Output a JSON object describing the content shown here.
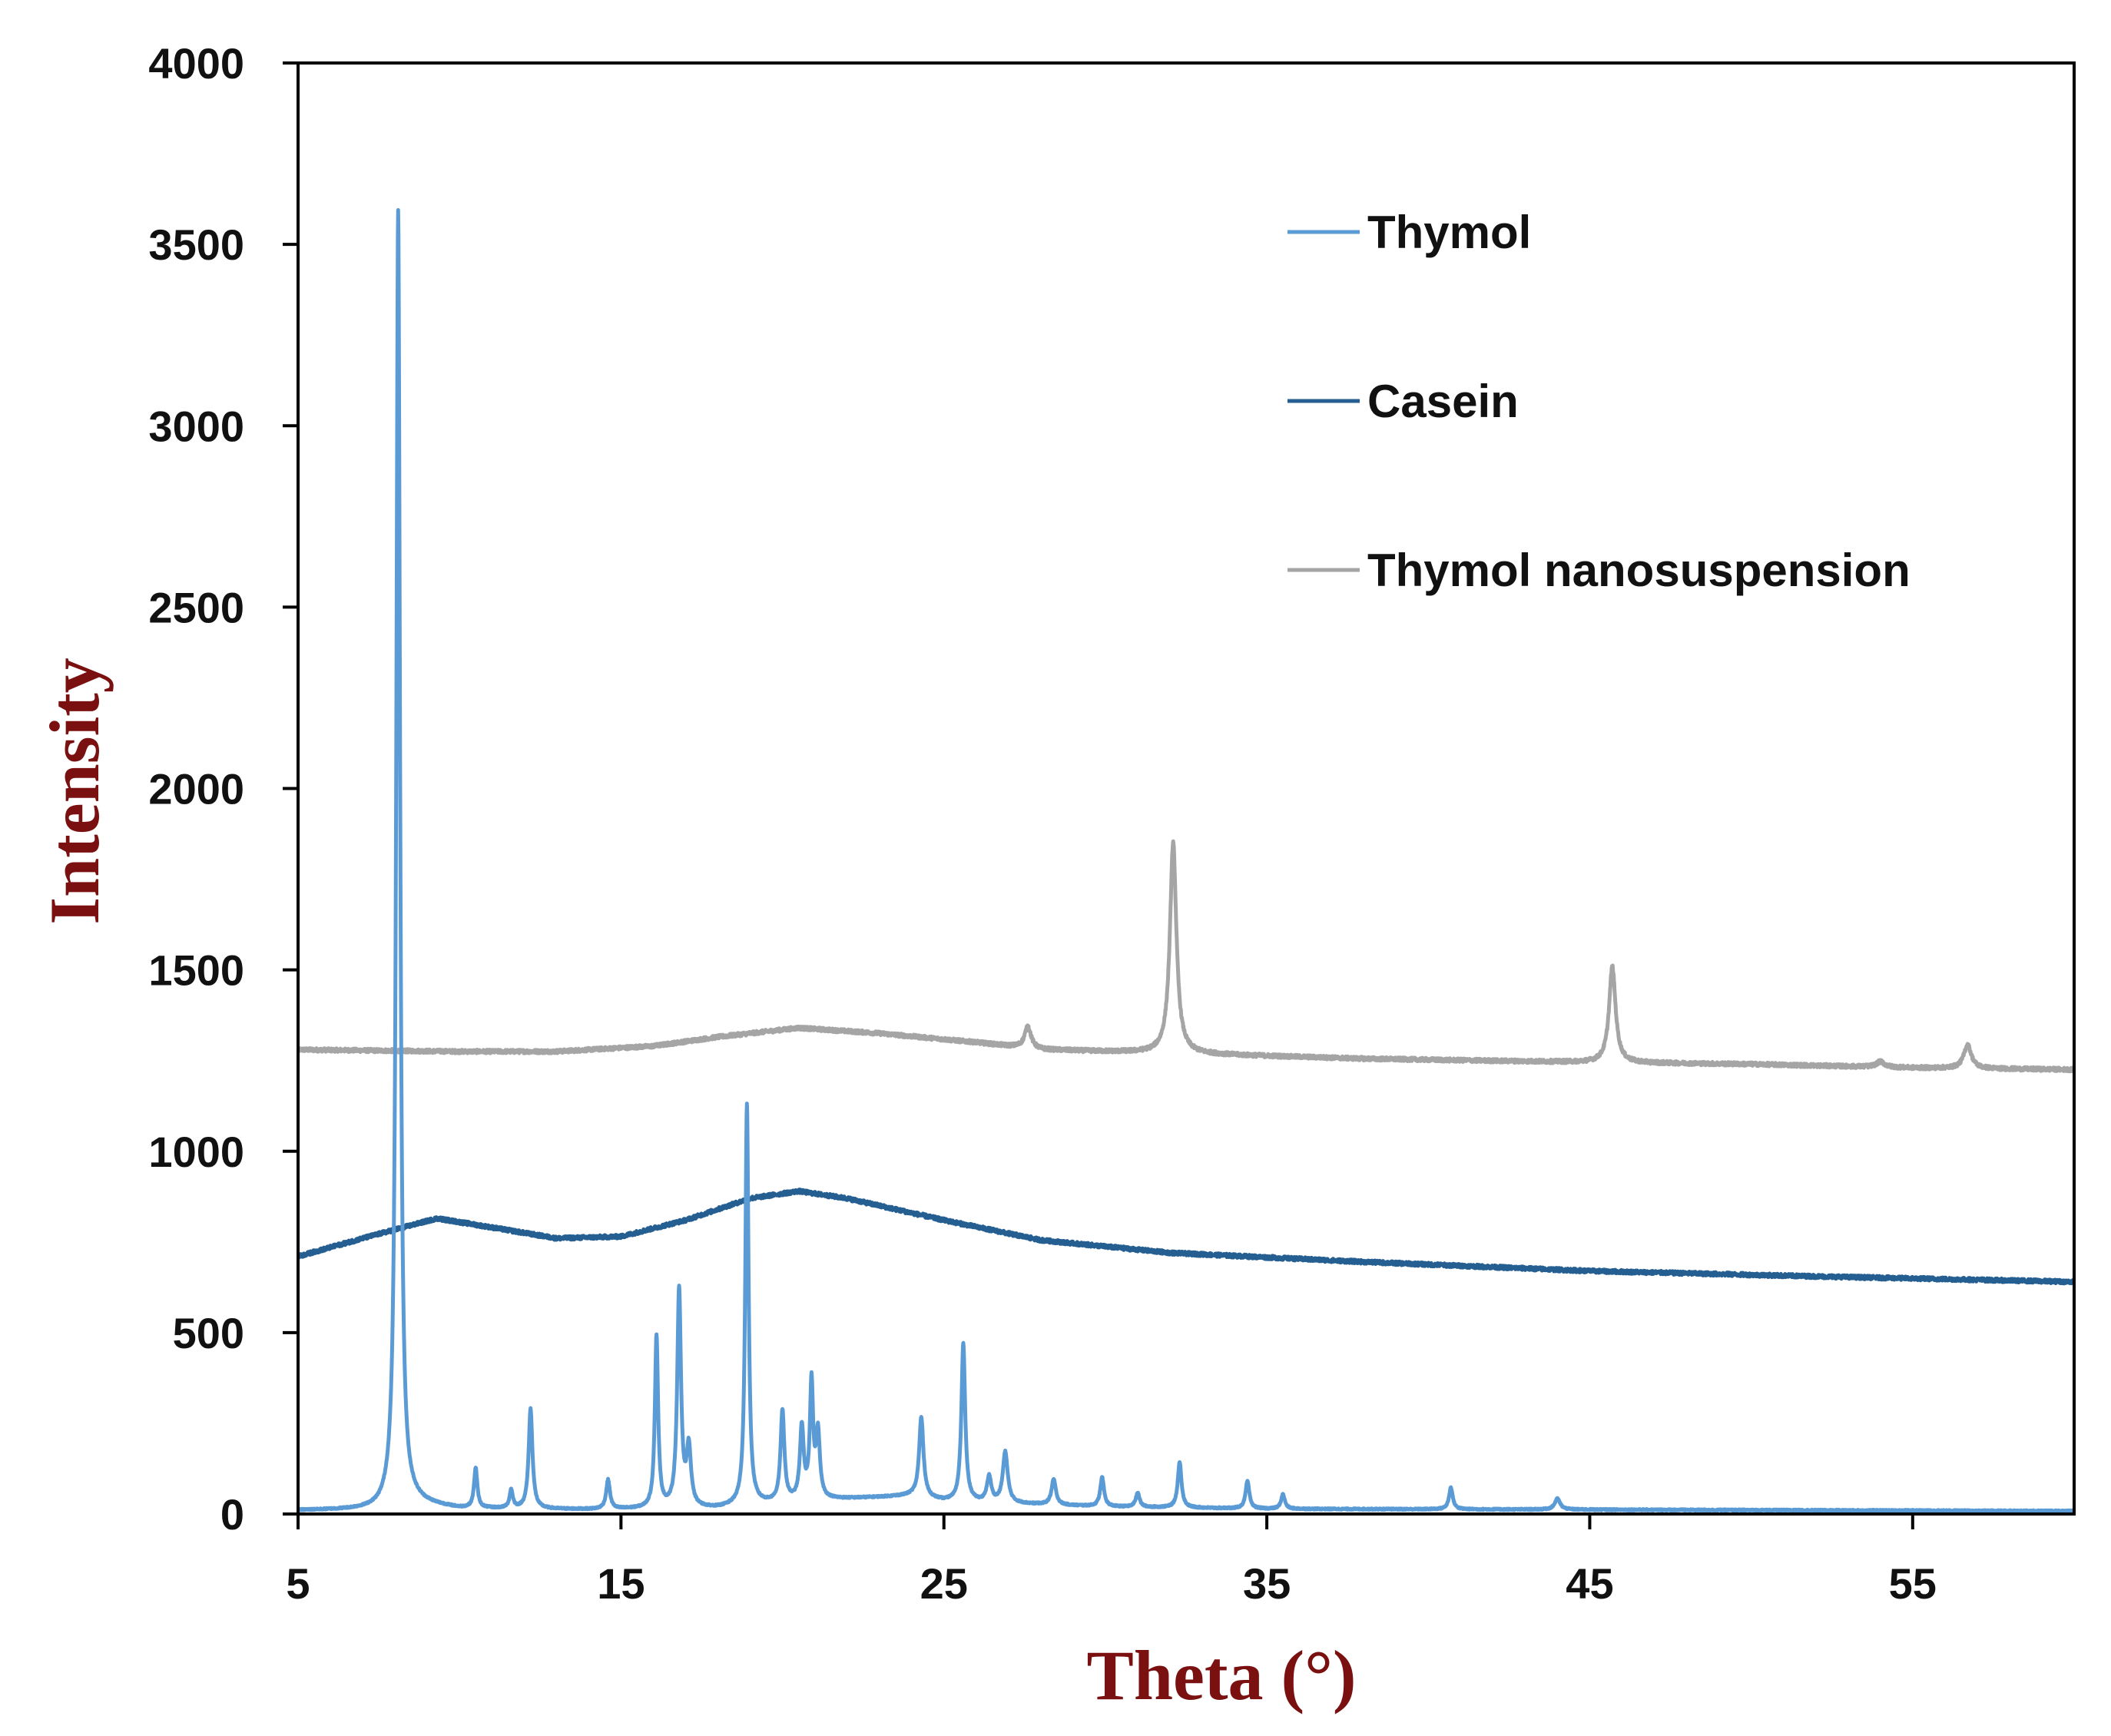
{
  "chart_data": {
    "type": "line",
    "title": "",
    "xlabel": "Theta (°)",
    "ylabel": "Intensity",
    "xlim": [
      5,
      60
    ],
    "ylim": [
      0,
      4000
    ],
    "x_ticks": [
      5,
      15,
      25,
      35,
      45,
      55
    ],
    "x_tick_labels": [
      "5",
      "15",
      "25",
      "35",
      "45",
      "55"
    ],
    "y_ticks": [
      0,
      500,
      1000,
      1500,
      2000,
      2500,
      3000,
      3500,
      4000
    ],
    "y_tick_labels": [
      "0",
      "500",
      "1000",
      "1500",
      "2000",
      "2500",
      "3000",
      "3500",
      "4000"
    ],
    "grid": false,
    "legend_position": "top-right",
    "series": [
      {
        "name": "Thymol",
        "color": "#5b9bd5",
        "baseline": [
          [
            5,
            10
          ],
          [
            7.5,
            12
          ],
          [
            8.5,
            30
          ],
          [
            10,
            15
          ],
          [
            14,
            12
          ],
          [
            18,
            15
          ],
          [
            19,
            25
          ],
          [
            21.5,
            40
          ],
          [
            24,
            50
          ],
          [
            25,
            35
          ],
          [
            30,
            20
          ],
          [
            35,
            14
          ],
          [
            45,
            12
          ],
          [
            60,
            8
          ]
        ],
        "peaks": [
          {
            "x": 8.1,
            "y": 3570,
            "w": 0.07
          },
          {
            "x": 10.5,
            "y": 110,
            "w": 0.06
          },
          {
            "x": 11.6,
            "y": 50,
            "w": 0.06
          },
          {
            "x": 12.2,
            "y": 275,
            "w": 0.07
          },
          {
            "x": 14.6,
            "y": 80,
            "w": 0.07
          },
          {
            "x": 16.1,
            "y": 475,
            "w": 0.06
          },
          {
            "x": 16.8,
            "y": 600,
            "w": 0.07
          },
          {
            "x": 17.1,
            "y": 160,
            "w": 0.08
          },
          {
            "x": 18.9,
            "y": 1105,
            "w": 0.06
          },
          {
            "x": 20.0,
            "y": 250,
            "w": 0.07
          },
          {
            "x": 20.6,
            "y": 200,
            "w": 0.07
          },
          {
            "x": 20.9,
            "y": 320,
            "w": 0.06
          },
          {
            "x": 21.1,
            "y": 180,
            "w": 0.07
          },
          {
            "x": 24.3,
            "y": 220,
            "w": 0.08
          },
          {
            "x": 25.6,
            "y": 435,
            "w": 0.07
          },
          {
            "x": 26.4,
            "y": 70,
            "w": 0.08
          },
          {
            "x": 26.9,
            "y": 140,
            "w": 0.09
          },
          {
            "x": 28.4,
            "y": 70,
            "w": 0.08
          },
          {
            "x": 29.9,
            "y": 80,
            "w": 0.07
          },
          {
            "x": 31.0,
            "y": 40,
            "w": 0.07
          },
          {
            "x": 32.3,
            "y": 125,
            "w": 0.07
          },
          {
            "x": 34.4,
            "y": 75,
            "w": 0.07
          },
          {
            "x": 35.5,
            "y": 40,
            "w": 0.07
          },
          {
            "x": 40.7,
            "y": 60,
            "w": 0.07
          },
          {
            "x": 44.0,
            "y": 30,
            "w": 0.1
          }
        ]
      },
      {
        "name": "Casein",
        "color": "#255e91",
        "baseline": [
          [
            5,
            710
          ],
          [
            7,
            760
          ],
          [
            9.3,
            815
          ],
          [
            11,
            790
          ],
          [
            13,
            760
          ],
          [
            15,
            765
          ],
          [
            17,
            810
          ],
          [
            19,
            870
          ],
          [
            20.5,
            890
          ],
          [
            22,
            870
          ],
          [
            25,
            810
          ],
          [
            28,
            755
          ],
          [
            32,
            720
          ],
          [
            38,
            695
          ],
          [
            45,
            670
          ],
          [
            52,
            655
          ],
          [
            60,
            640
          ]
        ],
        "peaks": []
      },
      {
        "name": "Thymol nanosuspension",
        "color": "#a5a5a5",
        "baseline": [
          [
            5,
            1280
          ],
          [
            10,
            1275
          ],
          [
            13,
            1275
          ],
          [
            16,
            1290
          ],
          [
            18,
            1315
          ],
          [
            20.5,
            1340
          ],
          [
            23,
            1325
          ],
          [
            26,
            1300
          ],
          [
            28,
            1280
          ],
          [
            32,
            1270
          ],
          [
            38,
            1255
          ],
          [
            45,
            1245
          ],
          [
            50,
            1240
          ],
          [
            55,
            1230
          ],
          [
            60,
            1225
          ]
        ],
        "peaks": [
          {
            "x": 27.6,
            "y": 60,
            "w": 0.12
          },
          {
            "x": 32.1,
            "y": 580,
            "w": 0.12
          },
          {
            "x": 45.7,
            "y": 265,
            "w": 0.12
          },
          {
            "x": 54.0,
            "y": 15,
            "w": 0.15
          },
          {
            "x": 56.7,
            "y": 65,
            "w": 0.14
          }
        ]
      }
    ]
  }
}
